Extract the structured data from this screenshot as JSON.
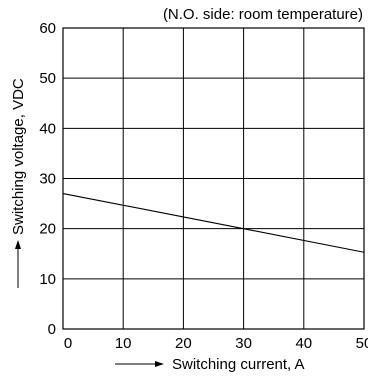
{
  "chart_data": {
    "type": "line",
    "title": "",
    "note": "(N.O. side: room temperature)",
    "xlabel": "Switching current, A",
    "ylabel": "Switching voltage, VDC",
    "xlim": [
      0,
      50
    ],
    "ylim": [
      0,
      60
    ],
    "xticks": [
      0,
      10,
      20,
      30,
      40,
      50
    ],
    "yticks": [
      0,
      10,
      20,
      30,
      40,
      50,
      60
    ],
    "grid": true,
    "series": [
      {
        "x": [
          0,
          30,
          50
        ],
        "y": [
          27,
          20,
          15.3
        ]
      }
    ]
  }
}
